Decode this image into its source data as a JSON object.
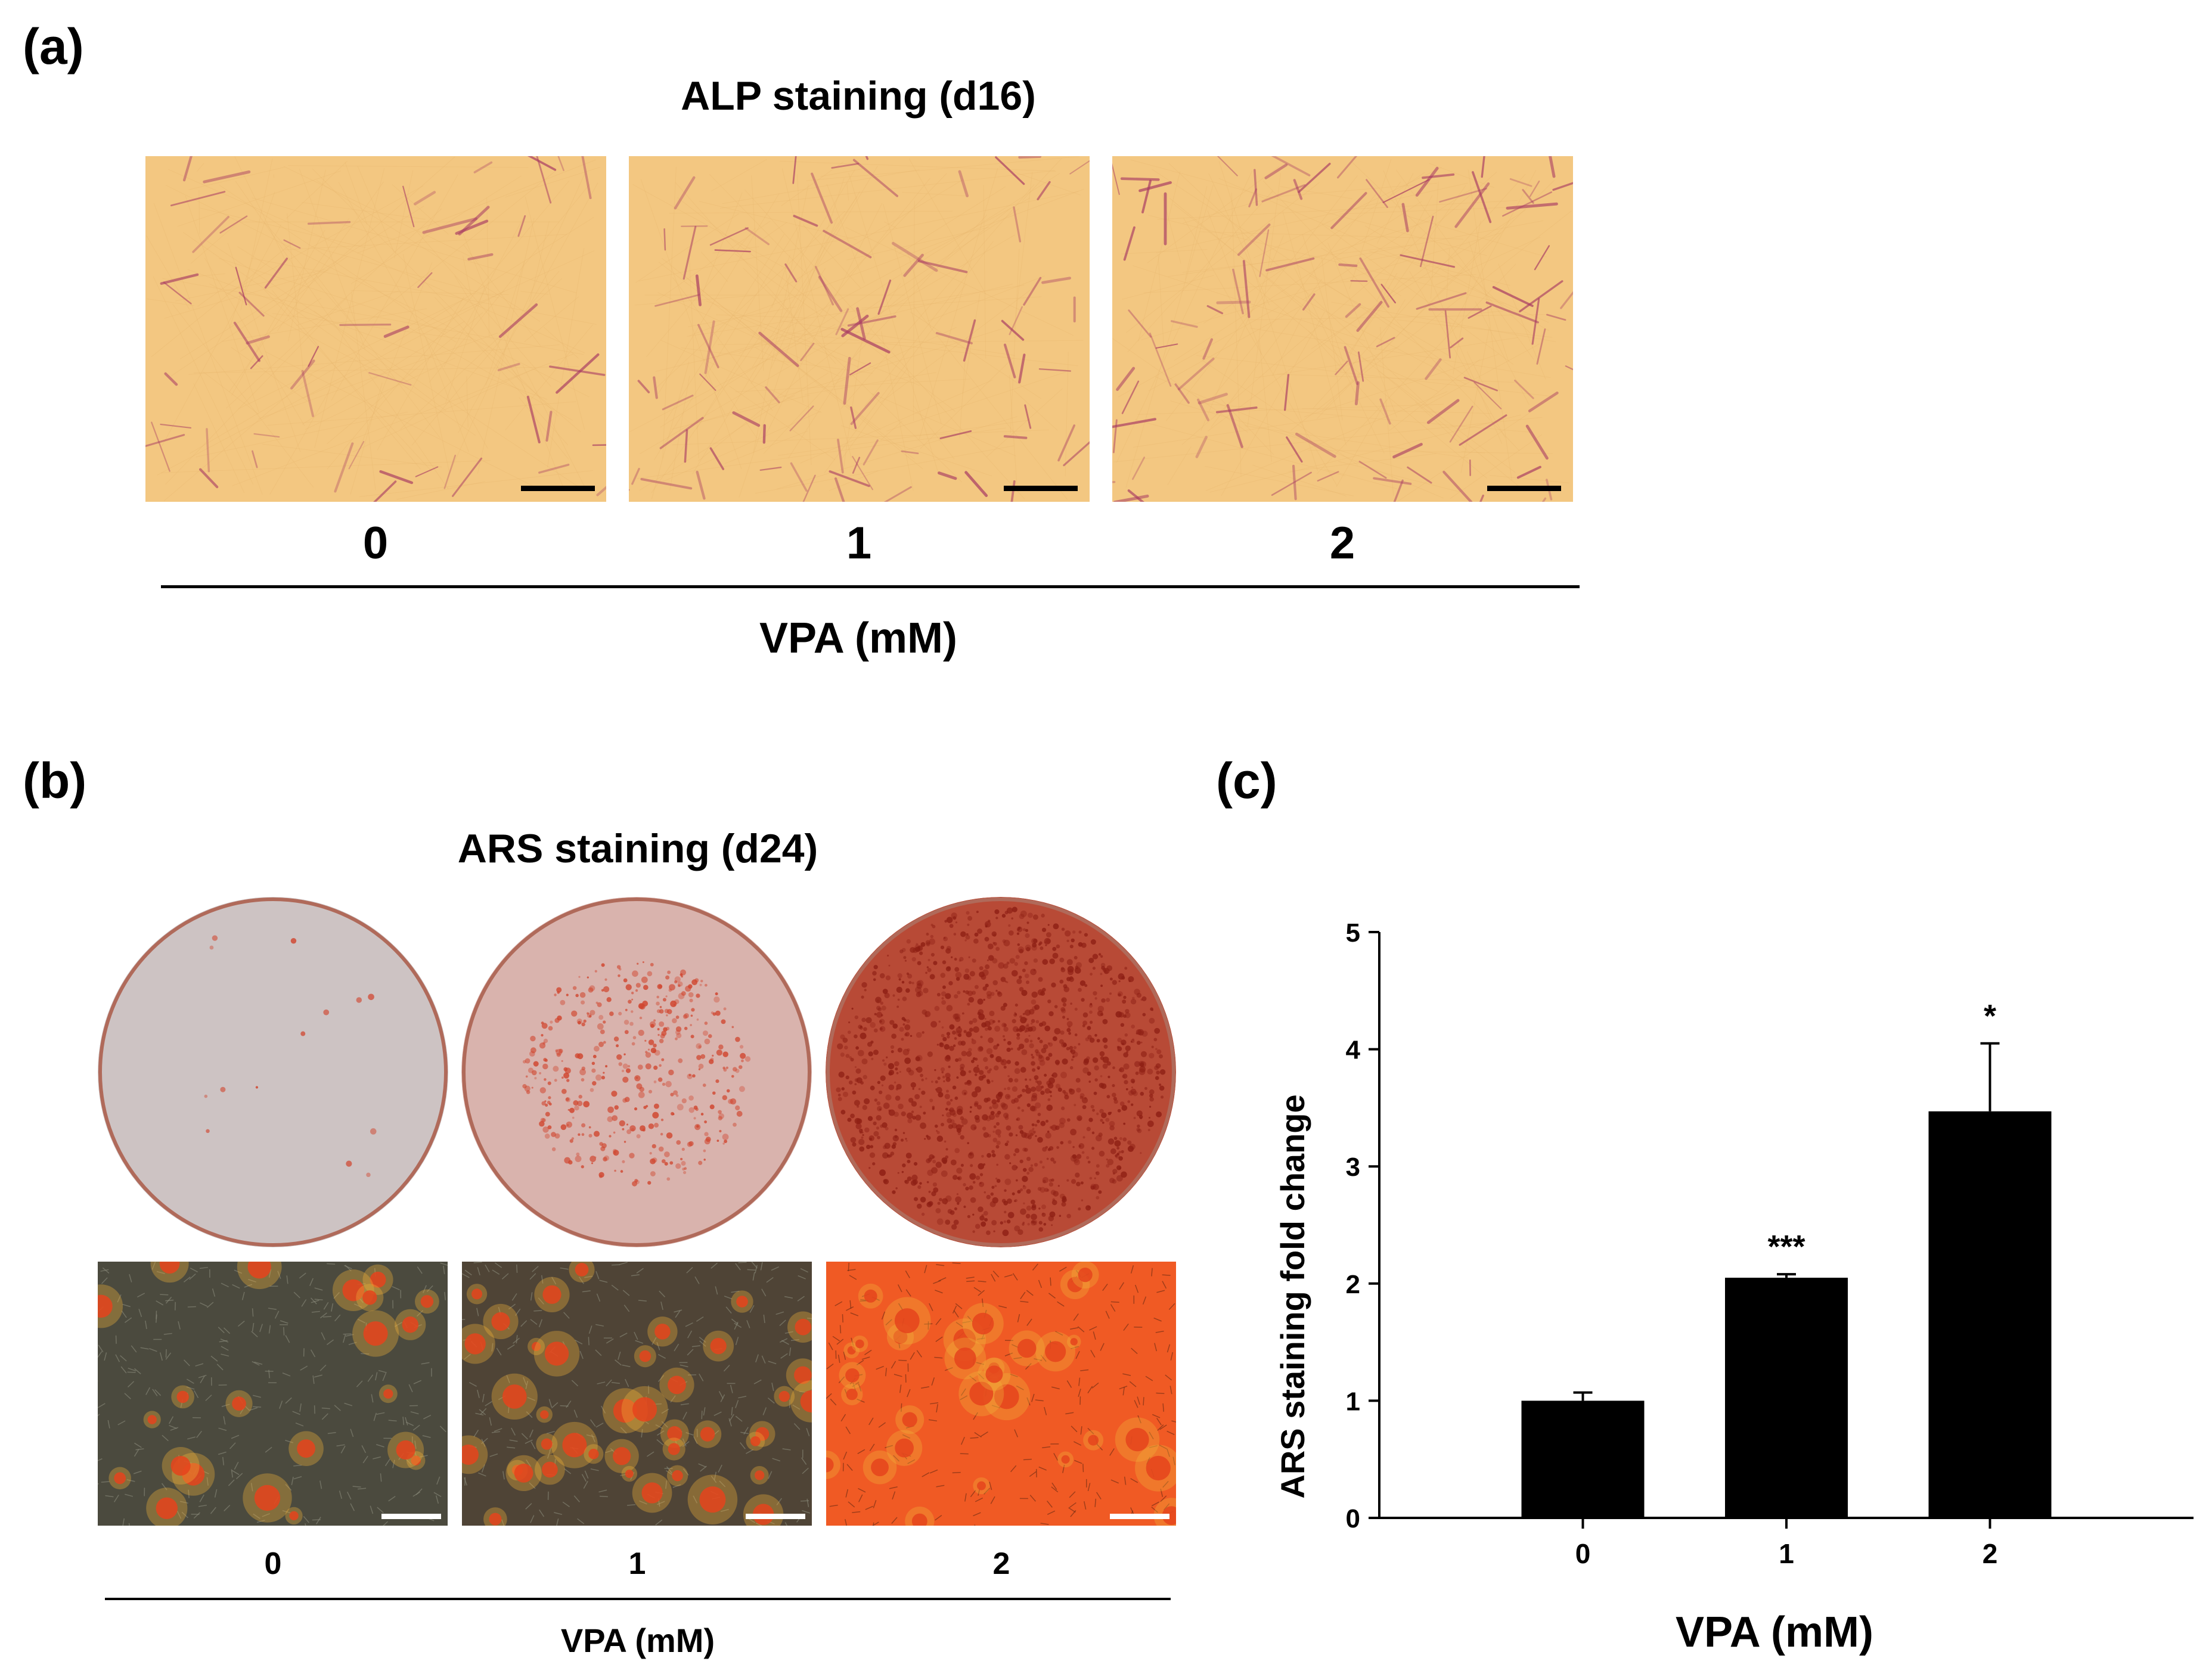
{
  "panel_a": {
    "label": "(a)",
    "title": "ALP staining (d16)",
    "conditions": [
      "0",
      "1",
      "2"
    ],
    "axis_label": "VPA (mM)",
    "image_color": "#f3c781",
    "stain_color": "#a83a63"
  },
  "panel_b": {
    "label": "(b)",
    "title": "ARS staining (d24)",
    "conditions": [
      "0",
      "1",
      "2"
    ],
    "axis_label": "VPA (mM)",
    "dish_colors": [
      "#cdc3c3",
      "#d9b3ad",
      "#b84a36"
    ],
    "micro_colors": [
      "#4b4a3e",
      "#4f4436",
      "#f05a24"
    ]
  },
  "panel_c": {
    "label": "(c)"
  },
  "chart_data": {
    "type": "bar",
    "categories": [
      "0",
      "1",
      "2"
    ],
    "values": [
      1.0,
      2.05,
      3.47
    ],
    "errors": [
      0.07,
      0.03,
      0.58
    ],
    "significance": [
      "",
      "***",
      "*"
    ],
    "xlabel": "VPA (mM)",
    "ylabel": "ARS staining fold change",
    "ylim": [
      0,
      5
    ],
    "yticks": [
      0,
      1,
      2,
      3,
      4,
      5
    ],
    "bar_color": "#000000",
    "grid": false,
    "legend": "none"
  }
}
